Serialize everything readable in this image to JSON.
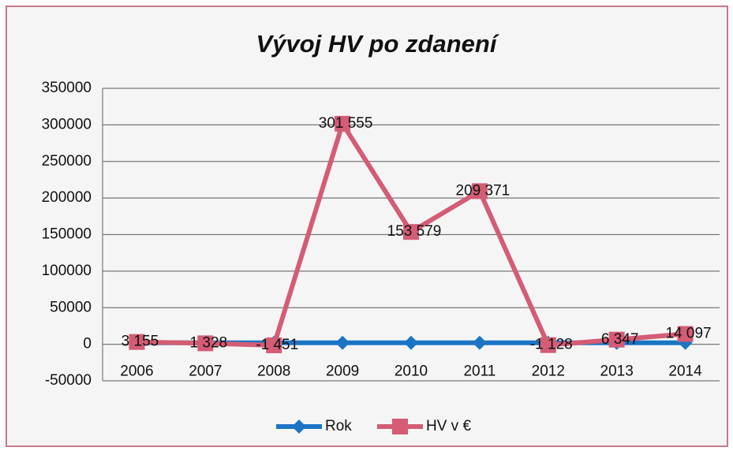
{
  "chart_data": {
    "type": "line",
    "title": "Vývoj HV po zdanení",
    "categories": [
      "2006",
      "2007",
      "2008",
      "2009",
      "2010",
      "2011",
      "2012",
      "2013",
      "2014"
    ],
    "series": [
      {
        "name": "Rok",
        "color": "#1b75c4",
        "marker": "diamond",
        "values": [
          2006,
          2007,
          2008,
          2009,
          2010,
          2011,
          2012,
          2013,
          2014
        ]
      },
      {
        "name": "HV v €",
        "color": "#d45c74",
        "marker": "square",
        "values": [
          3155,
          1328,
          -1451,
          301555,
          153579,
          209371,
          -1128,
          6347,
          14097
        ],
        "value_labels": [
          "3 155",
          "1 328",
          "-1 451",
          "301 555",
          "153 579",
          "209 371",
          "-1 128",
          "6 347",
          "14 097"
        ]
      }
    ],
    "ylim": [
      -50000,
      350000
    ],
    "yticks": [
      -50000,
      0,
      50000,
      100000,
      150000,
      200000,
      250000,
      300000,
      350000
    ],
    "grid": true,
    "legend": "bottom"
  }
}
